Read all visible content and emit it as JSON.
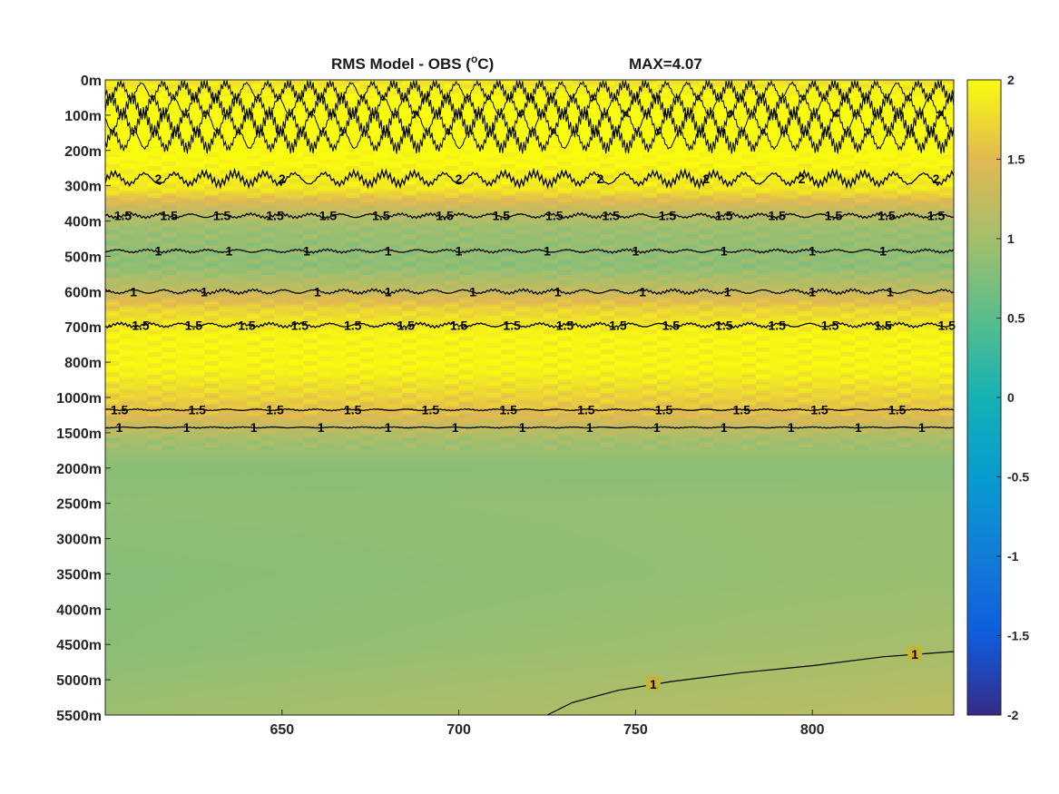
{
  "chart_data": {
    "type": "heatmap",
    "title": "RMS Model - OBS (",
    "title_unit_sup": "o",
    "title_unit_end": "C)",
    "max_label": "MAX=4.07",
    "xlim": [
      600,
      840
    ],
    "xticks": [
      650,
      700,
      750,
      800
    ],
    "depth_levels": [
      "0m",
      "100m",
      "200m",
      "300m",
      "400m",
      "500m",
      "600m",
      "700m",
      "800m",
      "1000m",
      "1500m",
      "2000m",
      "2500m",
      "3000m",
      "3500m",
      "4000m",
      "4500m",
      "5000m",
      "5500m"
    ],
    "colorbar": {
      "clim": [
        -2,
        2
      ],
      "ticks": [
        2,
        1.5,
        1,
        0.5,
        0,
        -0.5,
        -1,
        -1.5,
        -2
      ],
      "colormap": "parula"
    },
    "depth_profile": [
      {
        "level": 0,
        "value": 1.8
      },
      {
        "level": 0.5,
        "value": 2.0
      },
      {
        "level": 1,
        "value": 2.4
      },
      {
        "level": 1.6,
        "value": 2.1
      },
      {
        "level": 2.5,
        "value": 1.95
      },
      {
        "level": 3.1,
        "value": 1.85
      },
      {
        "level": 3.6,
        "value": 1.3
      },
      {
        "level": 4.2,
        "value": 0.95
      },
      {
        "level": 4.6,
        "value": 0.9
      },
      {
        "level": 5.3,
        "value": 0.85
      },
      {
        "level": 5.9,
        "value": 1.2
      },
      {
        "level": 6.5,
        "value": 1.7
      },
      {
        "level": 7.2,
        "value": 1.95
      },
      {
        "level": 8.2,
        "value": 1.95
      },
      {
        "level": 9.4,
        "value": 1.55
      },
      {
        "level": 10.2,
        "value": 1.0
      },
      {
        "level": 11,
        "value": 0.82
      },
      {
        "level": 12,
        "value": 0.88
      },
      {
        "level": 14,
        "value": 0.85
      },
      {
        "level": 16,
        "value": 0.9
      },
      {
        "level": 18,
        "value": 1.05
      }
    ],
    "contours": [
      {
        "label": "2",
        "level": 2.8,
        "noise": 0.25,
        "label_x": [
          615,
          650,
          700,
          740,
          770,
          797,
          835
        ]
      },
      {
        "label": "1.5",
        "level": 3.85,
        "noise": 0.08,
        "label_x": [
          605,
          618,
          633,
          648,
          663,
          678,
          696,
          712,
          727,
          743,
          759,
          775,
          790,
          806,
          821,
          835
        ]
      },
      {
        "label": "1",
        "level": 4.85,
        "noise": 0.06,
        "label_x": [
          615,
          635,
          657,
          680,
          700,
          725,
          750,
          775,
          800,
          820
        ]
      },
      {
        "label": "1",
        "level": 6.0,
        "noise": 0.08,
        "label_x": [
          608,
          628,
          660,
          680,
          704,
          728,
          752,
          776,
          800,
          822
        ]
      },
      {
        "label": "1.5",
        "level": 6.95,
        "noise": 0.08,
        "label_x": [
          610,
          625,
          640,
          655,
          670,
          685,
          700,
          715,
          730,
          745,
          760,
          775,
          790,
          805,
          820,
          838
        ]
      },
      {
        "label": "1.5",
        "level": 9.35,
        "noise": 0.03,
        "label_x": [
          604,
          626,
          648,
          670,
          692,
          714,
          736,
          758,
          780,
          802,
          824
        ]
      },
      {
        "label": "1",
        "level": 9.85,
        "noise": 0.02,
        "label_x": [
          604,
          623,
          642,
          661,
          680,
          699,
          718,
          737,
          756,
          775,
          794,
          813,
          831
        ]
      }
    ],
    "bottom_contour": {
      "label": "1",
      "points": [
        [
          725,
          18
        ],
        [
          732,
          17.65
        ],
        [
          745,
          17.3
        ],
        [
          760,
          17.05
        ],
        [
          780,
          16.8
        ],
        [
          800,
          16.6
        ],
        [
          820,
          16.35
        ],
        [
          840,
          16.2
        ]
      ],
      "label_points": [
        [
          755,
          17.15
        ],
        [
          829,
          16.3
        ]
      ]
    }
  }
}
